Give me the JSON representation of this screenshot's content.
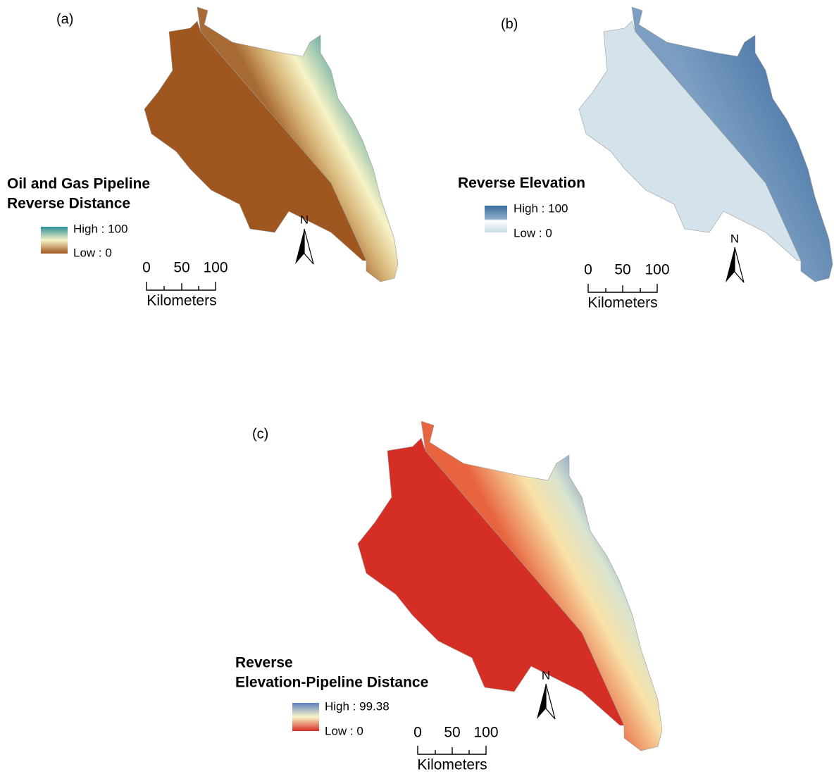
{
  "panels": [
    {
      "label": "(a)",
      "legend": {
        "title": [
          "Oil and Gas Pipeline",
          "Reverse Distance"
        ],
        "high": "High : 100",
        "low": "Low : 0"
      },
      "north": "N",
      "scale": {
        "ticks": [
          "0",
          "50",
          "100"
        ],
        "unit": "Kilometers"
      }
    },
    {
      "label": "(b)",
      "legend": {
        "title": [
          "Reverse Elevation"
        ],
        "high": "High : 100",
        "low": "Low : 0"
      },
      "north": "N",
      "scale": {
        "ticks": [
          "0",
          "50",
          "100"
        ],
        "unit": "Kilometers"
      }
    },
    {
      "label": "(c)",
      "legend": {
        "title": [
          "Reverse",
          "Elevation-Pipeline Distance"
        ],
        "high": "High : 99.38",
        "low": "Low : 0"
      },
      "north": "N",
      "scale": {
        "ticks": [
          "0",
          "50",
          "100"
        ],
        "unit": "Kilometers"
      }
    }
  ]
}
